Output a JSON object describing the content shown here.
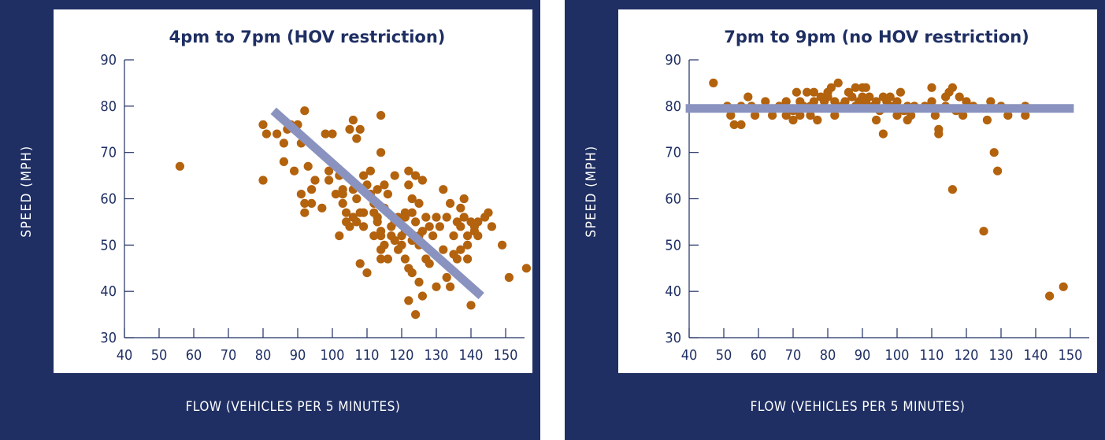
{
  "colors": {
    "panel": "#1f2f63",
    "point": "#b3620e",
    "trend": "#8a93bf",
    "text": "#1f2f63"
  },
  "chart_data": [
    {
      "type": "scatter",
      "title": "4pm to 7pm (HOV restriction)",
      "xlabel": "FLOW (VEHICLES PER 5 MINUTES)",
      "ylabel": "SPEED (MPH)",
      "xlim": [
        40,
        155
      ],
      "ylim": [
        30,
        90
      ],
      "xticks": [
        40,
        50,
        60,
        70,
        80,
        90,
        100,
        110,
        120,
        130,
        140,
        150
      ],
      "yticks": [
        30,
        40,
        50,
        60,
        70,
        80,
        90
      ],
      "trend": {
        "x": [
          83,
          143
        ],
        "y": [
          79,
          39
        ]
      },
      "points": [
        [
          56,
          67
        ],
        [
          80,
          76
        ],
        [
          80,
          64
        ],
        [
          81,
          74
        ],
        [
          84,
          74
        ],
        [
          86,
          72
        ],
        [
          86,
          68
        ],
        [
          87,
          75
        ],
        [
          88,
          76
        ],
        [
          89,
          75
        ],
        [
          89,
          66
        ],
        [
          90,
          76
        ],
        [
          91,
          72
        ],
        [
          91,
          61
        ],
        [
          92,
          79
        ],
        [
          92,
          59
        ],
        [
          92,
          57
        ],
        [
          93,
          67
        ],
        [
          94,
          59
        ],
        [
          94,
          62
        ],
        [
          95,
          64
        ],
        [
          97,
          58
        ],
        [
          98,
          74
        ],
        [
          99,
          66
        ],
        [
          99,
          64
        ],
        [
          100,
          74
        ],
        [
          101,
          61
        ],
        [
          102,
          65
        ],
        [
          102,
          52
        ],
        [
          103,
          62
        ],
        [
          103,
          59
        ],
        [
          103,
          61
        ],
        [
          104,
          57
        ],
        [
          104,
          55
        ],
        [
          105,
          75
        ],
        [
          105,
          54
        ],
        [
          106,
          77
        ],
        [
          106,
          62
        ],
        [
          106,
          56
        ],
        [
          107,
          73
        ],
        [
          107,
          60
        ],
        [
          107,
          55
        ],
        [
          108,
          75
        ],
        [
          108,
          46
        ],
        [
          108,
          57
        ],
        [
          109,
          65
        ],
        [
          109,
          54
        ],
        [
          109,
          57
        ],
        [
          110,
          63
        ],
        [
          110,
          44
        ],
        [
          111,
          66
        ],
        [
          111,
          61
        ],
        [
          112,
          59
        ],
        [
          112,
          52
        ],
        [
          112,
          57
        ],
        [
          113,
          62
        ],
        [
          113,
          56
        ],
        [
          113,
          55
        ],
        [
          114,
          78
        ],
        [
          114,
          70
        ],
        [
          114,
          49
        ],
        [
          114,
          52
        ],
        [
          114,
          47
        ],
        [
          114,
          53
        ],
        [
          115,
          63
        ],
        [
          115,
          58
        ],
        [
          115,
          50
        ],
        [
          116,
          61
        ],
        [
          116,
          47
        ],
        [
          117,
          54
        ],
        [
          117,
          52
        ],
        [
          118,
          65
        ],
        [
          118,
          55
        ],
        [
          118,
          51
        ],
        [
          119,
          49
        ],
        [
          119,
          56
        ],
        [
          120,
          52
        ],
        [
          120,
          50
        ],
        [
          121,
          56
        ],
        [
          121,
          57
        ],
        [
          121,
          53
        ],
        [
          121,
          47
        ],
        [
          122,
          63
        ],
        [
          122,
          66
        ],
        [
          122,
          45
        ],
        [
          122,
          38
        ],
        [
          123,
          60
        ],
        [
          123,
          57
        ],
        [
          123,
          44
        ],
        [
          123,
          51
        ],
        [
          124,
          65
        ],
        [
          124,
          35
        ],
        [
          124,
          55
        ],
        [
          125,
          59
        ],
        [
          125,
          52
        ],
        [
          125,
          42
        ],
        [
          125,
          50
        ],
        [
          126,
          64
        ],
        [
          126,
          53
        ],
        [
          126,
          39
        ],
        [
          127,
          47
        ],
        [
          127,
          56
        ],
        [
          128,
          54
        ],
        [
          128,
          46
        ],
        [
          129,
          52
        ],
        [
          130,
          56
        ],
        [
          130,
          41
        ],
        [
          131,
          54
        ],
        [
          132,
          62
        ],
        [
          132,
          49
        ],
        [
          133,
          56
        ],
        [
          133,
          43
        ],
        [
          134,
          59
        ],
        [
          134,
          41
        ],
        [
          135,
          48
        ],
        [
          135,
          52
        ],
        [
          136,
          55
        ],
        [
          136,
          47
        ],
        [
          137,
          58
        ],
        [
          137,
          54
        ],
        [
          137,
          49
        ],
        [
          138,
          60
        ],
        [
          138,
          56
        ],
        [
          139,
          52
        ],
        [
          139,
          50
        ],
        [
          139,
          47
        ],
        [
          140,
          55
        ],
        [
          140,
          37
        ],
        [
          141,
          53
        ],
        [
          141,
          54
        ],
        [
          142,
          52
        ],
        [
          142,
          55
        ],
        [
          144,
          56
        ],
        [
          145,
          57
        ],
        [
          146,
          54
        ],
        [
          149,
          50
        ],
        [
          151,
          43
        ],
        [
          156,
          45
        ]
      ]
    },
    {
      "type": "scatter",
      "title": "7pm to 9pm (no HOV restriction)",
      "xlabel": "FLOW (VEHICLES PER 5 MINUTES)",
      "ylabel": "SPEED (MPH)",
      "xlim": [
        40,
        155
      ],
      "ylim": [
        30,
        90
      ],
      "xticks": [
        40,
        50,
        60,
        70,
        80,
        90,
        100,
        110,
        120,
        130,
        140,
        150
      ],
      "yticks": [
        30,
        40,
        50,
        60,
        70,
        80,
        90
      ],
      "trend": {
        "x": [
          39,
          151
        ],
        "y": [
          79.5,
          79.5
        ]
      },
      "points": [
        [
          47,
          85
        ],
        [
          51,
          80
        ],
        [
          52,
          78
        ],
        [
          53,
          76
        ],
        [
          55,
          80
        ],
        [
          55,
          76
        ],
        [
          57,
          82
        ],
        [
          58,
          80
        ],
        [
          59,
          78
        ],
        [
          62,
          81
        ],
        [
          64,
          78
        ],
        [
          66,
          80
        ],
        [
          68,
          81
        ],
        [
          68,
          78
        ],
        [
          70,
          77
        ],
        [
          70,
          79
        ],
        [
          71,
          83
        ],
        [
          72,
          78
        ],
        [
          72,
          81
        ],
        [
          73,
          80
        ],
        [
          74,
          83
        ],
        [
          75,
          78
        ],
        [
          75,
          80
        ],
        [
          76,
          83
        ],
        [
          76,
          81
        ],
        [
          77,
          77
        ],
        [
          78,
          82
        ],
        [
          79,
          81
        ],
        [
          80,
          82
        ],
        [
          80,
          83
        ],
        [
          81,
          84
        ],
        [
          82,
          81
        ],
        [
          82,
          78
        ],
        [
          83,
          85
        ],
        [
          84,
          80
        ],
        [
          85,
          81
        ],
        [
          86,
          83
        ],
        [
          87,
          82
        ],
        [
          88,
          80
        ],
        [
          88,
          84
        ],
        [
          89,
          81
        ],
        [
          90,
          84
        ],
        [
          90,
          82
        ],
        [
          91,
          81
        ],
        [
          91,
          84
        ],
        [
          92,
          82
        ],
        [
          93,
          80
        ],
        [
          94,
          81
        ],
        [
          94,
          77
        ],
        [
          95,
          79
        ],
        [
          96,
          82
        ],
        [
          96,
          74
        ],
        [
          97,
          81
        ],
        [
          98,
          80
        ],
        [
          98,
          82
        ],
        [
          99,
          80
        ],
        [
          100,
          78
        ],
        [
          100,
          81
        ],
        [
          101,
          83
        ],
        [
          102,
          79
        ],
        [
          103,
          80
        ],
        [
          103,
          77
        ],
        [
          104,
          78
        ],
        [
          105,
          80
        ],
        [
          108,
          80
        ],
        [
          110,
          81
        ],
        [
          110,
          84
        ],
        [
          111,
          78
        ],
        [
          112,
          75
        ],
        [
          112,
          74
        ],
        [
          114,
          80
        ],
        [
          114,
          82
        ],
        [
          115,
          83
        ],
        [
          116,
          84
        ],
        [
          116,
          62
        ],
        [
          117,
          79
        ],
        [
          118,
          82
        ],
        [
          119,
          78
        ],
        [
          120,
          81
        ],
        [
          122,
          80
        ],
        [
          125,
          53
        ],
        [
          126,
          77
        ],
        [
          127,
          81
        ],
        [
          128,
          70
        ],
        [
          129,
          66
        ],
        [
          130,
          80
        ],
        [
          132,
          78
        ],
        [
          137,
          78
        ],
        [
          137,
          80
        ],
        [
          144,
          39
        ],
        [
          148,
          41
        ]
      ]
    }
  ]
}
